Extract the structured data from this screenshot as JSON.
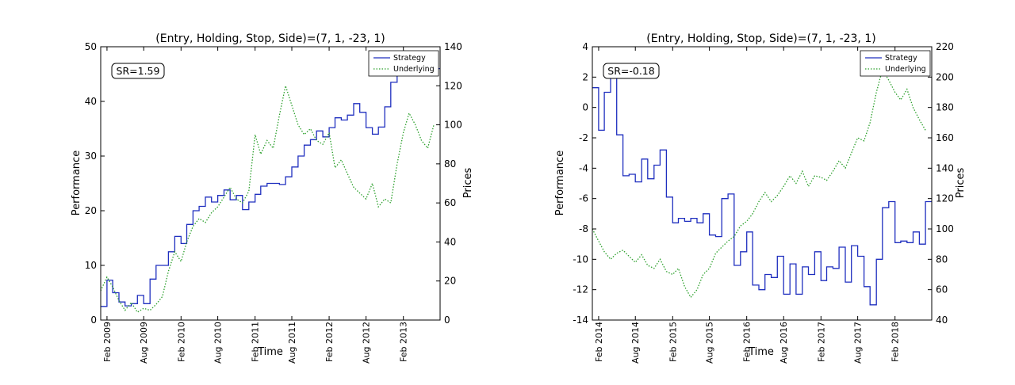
{
  "chart_data": [
    {
      "type": "line",
      "title": "(Entry, Holding, Stop, Side)=(7, 1, -23, 1)",
      "xlabel": "Time",
      "ylabel": "Performance",
      "y2label": "Prices",
      "annotation": "SR=1.59",
      "xlim": [
        "2009-01-01",
        "2013-08-01"
      ],
      "ylim": [
        0,
        50
      ],
      "y2lim": [
        0,
        140
      ],
      "yticks": [
        0,
        10,
        20,
        30,
        40,
        50
      ],
      "y2ticks": [
        0,
        20,
        40,
        60,
        80,
        100,
        120,
        140
      ],
      "xticks": [
        {
          "date": "2009-02-01",
          "label": "Feb 2009"
        },
        {
          "date": "2009-08-01",
          "label": "Aug 2009"
        },
        {
          "date": "2010-02-01",
          "label": "Feb 2010"
        },
        {
          "date": "2010-08-01",
          "label": "Aug 2010"
        },
        {
          "date": "2011-02-01",
          "label": "Feb 2011"
        },
        {
          "date": "2011-08-01",
          "label": "Aug 2011"
        },
        {
          "date": "2012-02-01",
          "label": "Feb 2012"
        },
        {
          "date": "2012-08-01",
          "label": "Aug 2012"
        },
        {
          "date": "2013-02-01",
          "label": "Feb 2013"
        }
      ],
      "grid": false,
      "legend_position": "top-right",
      "series": [
        {
          "name": "Strategy",
          "axis": "left",
          "style": "step",
          "color": "#1f2fbf",
          "x": [
            "2009-01-01",
            "2009-02-01",
            "2009-03-01",
            "2009-04-01",
            "2009-05-01",
            "2009-06-01",
            "2009-07-01",
            "2009-08-01",
            "2009-09-01",
            "2009-10-01",
            "2009-11-01",
            "2009-12-01",
            "2010-01-01",
            "2010-02-01",
            "2010-03-01",
            "2010-04-01",
            "2010-05-01",
            "2010-06-01",
            "2010-07-01",
            "2010-08-01",
            "2010-09-01",
            "2010-10-01",
            "2010-11-01",
            "2010-12-01",
            "2011-01-01",
            "2011-02-01",
            "2011-03-01",
            "2011-04-01",
            "2011-05-01",
            "2011-06-01",
            "2011-07-01",
            "2011-08-01",
            "2011-09-01",
            "2011-10-01",
            "2011-11-01",
            "2011-12-01",
            "2012-01-01",
            "2012-02-01",
            "2012-03-01",
            "2012-04-01",
            "2012-05-01",
            "2012-06-01",
            "2012-07-01",
            "2012-08-01",
            "2012-09-01",
            "2012-10-01",
            "2012-11-01",
            "2012-12-01",
            "2013-01-01",
            "2013-02-01",
            "2013-03-01",
            "2013-04-01",
            "2013-05-01",
            "2013-06-01",
            "2013-07-01"
          ],
          "values": [
            2.5,
            7.3,
            5,
            3.3,
            2.6,
            3,
            4.5,
            3,
            7.5,
            10,
            10,
            12.5,
            15.3,
            14,
            17.5,
            20,
            20.8,
            22.5,
            21.6,
            22.8,
            23.8,
            22,
            22.8,
            20.2,
            21.6,
            23,
            24.5,
            25,
            25,
            24.8,
            26.2,
            28,
            30,
            32,
            33,
            34.6,
            33.5,
            35.2,
            37,
            36.6,
            37.5,
            39.6,
            38,
            35.2,
            34,
            35.3,
            39,
            43.5,
            45,
            46,
            46,
            46,
            46,
            46,
            46
          ]
        },
        {
          "name": "Underlying",
          "axis": "right",
          "style": "dotted",
          "color": "#2ca02c",
          "x": [
            "2009-01-01",
            "2009-02-01",
            "2009-03-01",
            "2009-04-01",
            "2009-05-01",
            "2009-06-01",
            "2009-07-01",
            "2009-08-01",
            "2009-09-01",
            "2009-10-01",
            "2009-11-01",
            "2009-12-01",
            "2010-01-01",
            "2010-02-01",
            "2010-03-01",
            "2010-04-01",
            "2010-05-01",
            "2010-06-01",
            "2010-07-01",
            "2010-08-01",
            "2010-09-01",
            "2010-10-01",
            "2010-11-01",
            "2010-12-01",
            "2011-01-01",
            "2011-02-01",
            "2011-03-01",
            "2011-04-01",
            "2011-05-01",
            "2011-06-01",
            "2011-07-01",
            "2011-08-01",
            "2011-09-01",
            "2011-10-01",
            "2011-11-01",
            "2011-12-01",
            "2012-01-01",
            "2012-02-01",
            "2012-03-01",
            "2012-04-01",
            "2012-05-01",
            "2012-06-01",
            "2012-07-01",
            "2012-08-01",
            "2012-09-01",
            "2012-10-01",
            "2012-11-01",
            "2012-12-01",
            "2013-01-01",
            "2013-02-01",
            "2013-03-01",
            "2013-04-01",
            "2013-05-01",
            "2013-06-01",
            "2013-07-01"
          ],
          "values": [
            15,
            22,
            17,
            10,
            5,
            9,
            4,
            6,
            5,
            8,
            12,
            25,
            35,
            30,
            40,
            48,
            52,
            50,
            55,
            58,
            63,
            68,
            62,
            60,
            66,
            95,
            85,
            92,
            88,
            105,
            120,
            110,
            100,
            95,
            98,
            92,
            90,
            96,
            78,
            82,
            75,
            68,
            65,
            62,
            70,
            58,
            62,
            60,
            80,
            96,
            106,
            100,
            92,
            88,
            100
          ]
        }
      ]
    },
    {
      "type": "line",
      "title": "(Entry, Holding, Stop, Side)=(7, 1, -23, 1)",
      "xlabel": "Time",
      "ylabel": "Performance",
      "y2label": "Prices",
      "annotation": "SR=-0.18",
      "xlim": [
        "2014-01-01",
        "2018-08-01"
      ],
      "ylim": [
        -14,
        4
      ],
      "y2lim": [
        40,
        220
      ],
      "yticks": [
        -14,
        -12,
        -10,
        -8,
        -6,
        -4,
        -2,
        0,
        2,
        4
      ],
      "y2ticks": [
        40,
        60,
        80,
        100,
        120,
        140,
        160,
        180,
        200,
        220
      ],
      "xticks": [
        {
          "date": "2014-02-01",
          "label": "Feb 2014"
        },
        {
          "date": "2014-08-01",
          "label": "Aug 2014"
        },
        {
          "date": "2015-02-01",
          "label": "Feb 2015"
        },
        {
          "date": "2015-08-01",
          "label": "Aug 2015"
        },
        {
          "date": "2016-02-01",
          "label": "Feb 2016"
        },
        {
          "date": "2016-08-01",
          "label": "Aug 2016"
        },
        {
          "date": "2017-02-01",
          "label": "Feb 2017"
        },
        {
          "date": "2017-08-01",
          "label": "Aug 2017"
        },
        {
          "date": "2018-02-01",
          "label": "Feb 2018"
        }
      ],
      "grid": false,
      "legend_position": "top-right",
      "series": [
        {
          "name": "Strategy",
          "axis": "left",
          "style": "step",
          "color": "#1f2fbf",
          "x": [
            "2014-01-01",
            "2014-02-01",
            "2014-03-01",
            "2014-04-01",
            "2014-05-01",
            "2014-06-01",
            "2014-07-01",
            "2014-08-01",
            "2014-09-01",
            "2014-10-01",
            "2014-11-01",
            "2014-12-01",
            "2015-01-01",
            "2015-02-01",
            "2015-03-01",
            "2015-04-01",
            "2015-05-01",
            "2015-06-01",
            "2015-07-01",
            "2015-08-01",
            "2015-09-01",
            "2015-10-01",
            "2015-11-01",
            "2015-12-01",
            "2016-01-01",
            "2016-02-01",
            "2016-03-01",
            "2016-04-01",
            "2016-05-01",
            "2016-06-01",
            "2016-07-01",
            "2016-08-01",
            "2016-09-01",
            "2016-10-01",
            "2016-11-01",
            "2016-12-01",
            "2017-01-01",
            "2017-02-01",
            "2017-03-01",
            "2017-04-01",
            "2017-05-01",
            "2017-06-01",
            "2017-07-01",
            "2017-08-01",
            "2017-09-01",
            "2017-10-01",
            "2017-11-01",
            "2017-12-01",
            "2018-01-01",
            "2018-02-01",
            "2018-03-01",
            "2018-04-01",
            "2018-05-01",
            "2018-06-01",
            "2018-07-01"
          ],
          "values": [
            1.3,
            -1.5,
            1,
            2,
            -1.8,
            -4.5,
            -4.4,
            -4.9,
            -3.4,
            -4.7,
            -3.8,
            -2.8,
            -5.9,
            -7.6,
            -7.3,
            -7.5,
            -7.3,
            -7.6,
            -7,
            -8.4,
            -8.5,
            -6,
            -5.7,
            -10.4,
            -9.5,
            -8.2,
            -11.7,
            -12,
            -11,
            -11.2,
            -9.8,
            -12.3,
            -10.3,
            -12.3,
            -10.5,
            -11,
            -9.5,
            -11.4,
            -10.5,
            -10.6,
            -9.2,
            -11.5,
            -9.1,
            -9.8,
            -11.8,
            -13,
            -10,
            -6.6,
            -6.2,
            -8.9,
            -8.8,
            -8.9,
            -8.2,
            -9,
            -6.2
          ]
        },
        {
          "name": "Underlying",
          "axis": "right",
          "style": "dotted",
          "color": "#2ca02c",
          "x": [
            "2014-01-01",
            "2014-02-01",
            "2014-03-01",
            "2014-04-01",
            "2014-05-01",
            "2014-06-01",
            "2014-07-01",
            "2014-08-01",
            "2014-09-01",
            "2014-10-01",
            "2014-11-01",
            "2014-12-01",
            "2015-01-01",
            "2015-02-01",
            "2015-03-01",
            "2015-04-01",
            "2015-05-01",
            "2015-06-01",
            "2015-07-01",
            "2015-08-01",
            "2015-09-01",
            "2015-10-01",
            "2015-11-01",
            "2015-12-01",
            "2016-01-01",
            "2016-02-01",
            "2016-03-01",
            "2016-04-01",
            "2016-05-01",
            "2016-06-01",
            "2016-07-01",
            "2016-08-01",
            "2016-09-01",
            "2016-10-01",
            "2016-11-01",
            "2016-12-01",
            "2017-01-01",
            "2017-02-01",
            "2017-03-01",
            "2017-04-01",
            "2017-05-01",
            "2017-06-01",
            "2017-07-01",
            "2017-08-01",
            "2017-09-01",
            "2017-10-01",
            "2017-11-01",
            "2017-12-01",
            "2018-01-01",
            "2018-02-01",
            "2018-03-01",
            "2018-04-01",
            "2018-05-01",
            "2018-06-01",
            "2018-07-01"
          ],
          "values": [
            100,
            92,
            85,
            80,
            84,
            86,
            82,
            78,
            83,
            76,
            74,
            80,
            72,
            70,
            74,
            62,
            55,
            60,
            70,
            74,
            84,
            88,
            92,
            95,
            102,
            105,
            110,
            118,
            124,
            118,
            122,
            128,
            135,
            130,
            138,
            128,
            135,
            134,
            132,
            138,
            145,
            140,
            150,
            160,
            158,
            170,
            190,
            205,
            198,
            190,
            185,
            192,
            180,
            172,
            165
          ]
        }
      ]
    }
  ]
}
